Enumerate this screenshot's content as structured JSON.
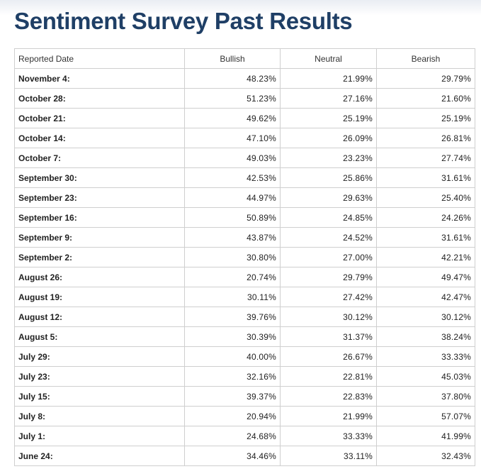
{
  "page": {
    "title": "Sentiment Survey Past Results"
  },
  "table": {
    "headers": {
      "date": "Reported Date",
      "bullish": "Bullish",
      "neutral": "Neutral",
      "bearish": "Bearish"
    },
    "rows": [
      {
        "date": "November 4:",
        "bullish": "48.23%",
        "neutral": "21.99%",
        "bearish": "29.79%"
      },
      {
        "date": "October 28:",
        "bullish": "51.23%",
        "neutral": "27.16%",
        "bearish": "21.60%"
      },
      {
        "date": "October 21:",
        "bullish": "49.62%",
        "neutral": "25.19%",
        "bearish": "25.19%"
      },
      {
        "date": "October 14:",
        "bullish": "47.10%",
        "neutral": "26.09%",
        "bearish": "26.81%"
      },
      {
        "date": "October 7:",
        "bullish": "49.03%",
        "neutral": "23.23%",
        "bearish": "27.74%"
      },
      {
        "date": "September 30:",
        "bullish": "42.53%",
        "neutral": "25.86%",
        "bearish": "31.61%"
      },
      {
        "date": "September 23:",
        "bullish": "44.97%",
        "neutral": "29.63%",
        "bearish": "25.40%"
      },
      {
        "date": "September 16:",
        "bullish": "50.89%",
        "neutral": "24.85%",
        "bearish": "24.26%"
      },
      {
        "date": "September 9:",
        "bullish": "43.87%",
        "neutral": "24.52%",
        "bearish": "31.61%"
      },
      {
        "date": "September 2:",
        "bullish": "30.80%",
        "neutral": "27.00%",
        "bearish": "42.21%"
      },
      {
        "date": "August 26:",
        "bullish": "20.74%",
        "neutral": "29.79%",
        "bearish": "49.47%"
      },
      {
        "date": "August 19:",
        "bullish": "30.11%",
        "neutral": "27.42%",
        "bearish": "42.47%"
      },
      {
        "date": "August 12:",
        "bullish": "39.76%",
        "neutral": "30.12%",
        "bearish": "30.12%"
      },
      {
        "date": "August 5:",
        "bullish": "30.39%",
        "neutral": "31.37%",
        "bearish": "38.24%"
      },
      {
        "date": "July 29:",
        "bullish": "40.00%",
        "neutral": "26.67%",
        "bearish": "33.33%"
      },
      {
        "date": "July 23:",
        "bullish": "32.16%",
        "neutral": "22.81%",
        "bearish": "45.03%"
      },
      {
        "date": "July 15:",
        "bullish": "39.37%",
        "neutral": "22.83%",
        "bearish": "37.80%"
      },
      {
        "date": "July 8:",
        "bullish": "20.94%",
        "neutral": "21.99%",
        "bearish": "57.07%"
      },
      {
        "date": "July 1:",
        "bullish": "24.68%",
        "neutral": "33.33%",
        "bearish": "41.99%"
      },
      {
        "date": "June 24:",
        "bullish": "34.46%",
        "neutral": "33.11%",
        "bearish": "32.43%"
      }
    ]
  }
}
